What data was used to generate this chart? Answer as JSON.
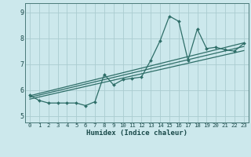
{
  "xlabel": "Humidex (Indice chaleur)",
  "ylabel": "",
  "bg_color": "#cce8ec",
  "grid_color": "#aaccd0",
  "line_color": "#2e6e68",
  "marker_color": "#2e6e68",
  "xlim": [
    -0.5,
    23.5
  ],
  "ylim": [
    4.75,
    9.35
  ],
  "xticks": [
    0,
    1,
    2,
    3,
    4,
    5,
    6,
    7,
    8,
    9,
    10,
    11,
    12,
    13,
    14,
    15,
    16,
    17,
    18,
    19,
    20,
    21,
    22,
    23
  ],
  "yticks": [
    5,
    6,
    7,
    8,
    9
  ],
  "series": [
    {
      "x": [
        0,
        1,
        2,
        3,
        4,
        5,
        6,
        7,
        8,
        9,
        10,
        11,
        12,
        13,
        14,
        15,
        16,
        17,
        18,
        19,
        20,
        21,
        22,
        23
      ],
      "y": [
        5.8,
        5.6,
        5.5,
        5.5,
        5.5,
        5.5,
        5.4,
        5.55,
        6.6,
        6.2,
        6.4,
        6.45,
        6.5,
        7.15,
        7.9,
        8.85,
        8.65,
        7.15,
        8.35,
        7.6,
        7.65,
        7.55,
        7.5,
        7.8
      ]
    },
    {
      "x": [
        0,
        23
      ],
      "y": [
        5.78,
        7.82
      ]
    },
    {
      "x": [
        0,
        23
      ],
      "y": [
        5.72,
        7.68
      ]
    },
    {
      "x": [
        0,
        23
      ],
      "y": [
        5.65,
        7.52
      ]
    }
  ]
}
